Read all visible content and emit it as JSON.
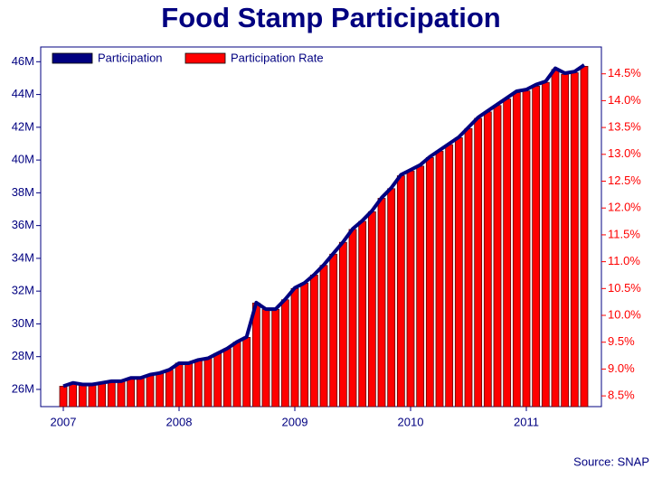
{
  "chart_data": {
    "type": "bar_line",
    "title": "Food Stamp Participation",
    "source": "Source: SNAP",
    "categories": [
      "2007",
      null,
      null,
      null,
      null,
      null,
      null,
      null,
      null,
      null,
      null,
      null,
      "2008",
      null,
      null,
      null,
      null,
      null,
      null,
      null,
      null,
      null,
      null,
      null,
      "2009",
      null,
      null,
      null,
      null,
      null,
      null,
      null,
      null,
      null,
      null,
      null,
      "2010",
      null,
      null,
      null,
      null,
      null,
      null,
      null,
      null,
      null,
      null,
      null,
      "2011",
      null,
      null,
      null,
      null,
      null,
      null
    ],
    "series": [
      {
        "name": "Participation",
        "color": "#000080",
        "axis": "y",
        "values": [
          26.2,
          26.4,
          26.3,
          26.3,
          26.4,
          26.5,
          26.5,
          26.7,
          26.7,
          26.9,
          27.0,
          27.2,
          27.6,
          27.6,
          27.8,
          27.9,
          28.2,
          28.5,
          28.9,
          29.2,
          31.3,
          30.9,
          30.9,
          31.5,
          32.2,
          32.5,
          33.0,
          33.6,
          34.3,
          35.0,
          35.8,
          36.3,
          36.9,
          37.7,
          38.3,
          39.1,
          39.4,
          39.7,
          40.2,
          40.6,
          41.0,
          41.4,
          42.0,
          42.6,
          43.0,
          43.4,
          43.8,
          44.2,
          44.3,
          44.6,
          44.8,
          45.6,
          45.3,
          45.4,
          45.8
        ]
      },
      {
        "name": "Participation Rate",
        "color": "#ff0000",
        "axis": "y2",
        "values": [
          8.68,
          8.74,
          8.71,
          8.71,
          8.74,
          8.77,
          8.77,
          8.83,
          8.83,
          8.89,
          8.92,
          8.98,
          9.11,
          9.11,
          9.17,
          9.2,
          9.29,
          9.38,
          9.5,
          9.59,
          10.23,
          10.11,
          10.11,
          10.29,
          10.5,
          10.6,
          10.75,
          10.93,
          11.14,
          11.36,
          11.6,
          11.75,
          11.93,
          12.18,
          12.36,
          12.6,
          12.69,
          12.78,
          12.94,
          13.06,
          13.18,
          13.31,
          13.48,
          13.67,
          13.79,
          13.91,
          14.03,
          14.15,
          14.18,
          14.27,
          14.34,
          14.58,
          14.49,
          14.52,
          14.64
        ]
      }
    ],
    "ylim": [
      24.95,
      46.9
    ],
    "yticks": [
      {
        "value": 26,
        "label": "26M"
      },
      {
        "value": 28,
        "label": "28M"
      },
      {
        "value": 30,
        "label": "30M"
      },
      {
        "value": 32,
        "label": "32M"
      },
      {
        "value": 34,
        "label": "34M"
      },
      {
        "value": 36,
        "label": "36M"
      },
      {
        "value": 38,
        "label": "38M"
      },
      {
        "value": 40,
        "label": "40M"
      },
      {
        "value": 42,
        "label": "42M"
      },
      {
        "value": 44,
        "label": "44M"
      },
      {
        "value": 46,
        "label": "46M"
      }
    ],
    "y2lim": [
      8.3,
      15
    ],
    "y2ticks": [
      {
        "value": 8.5,
        "label": "8.5%"
      },
      {
        "value": 9,
        "label": "9.0%"
      },
      {
        "value": 9.5,
        "label": "9.5%"
      },
      {
        "value": 10,
        "label": "10.0%"
      },
      {
        "value": 10.5,
        "label": "10.5%"
      },
      {
        "value": 11,
        "label": "11.0%"
      },
      {
        "value": 11.5,
        "label": "11.5%"
      },
      {
        "value": 12,
        "label": "12.0%"
      },
      {
        "value": 12.5,
        "label": "12.5%"
      },
      {
        "value": 13,
        "label": "13.0%"
      },
      {
        "value": 13.5,
        "label": "13.5%"
      },
      {
        "value": 14,
        "label": "14.0%"
      },
      {
        "value": 14.5,
        "label": "14.5%"
      }
    ],
    "legend": "top-left"
  }
}
